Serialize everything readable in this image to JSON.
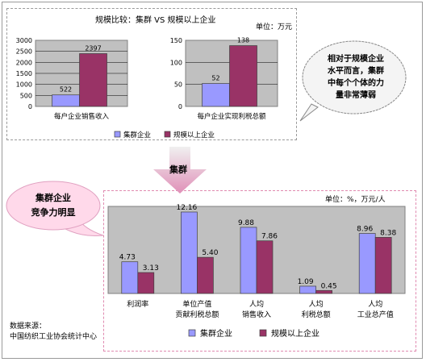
{
  "top_panel": {
    "title": "规模比较：集群 VS 规模以上企业",
    "unit": "单位：万元"
  },
  "bottom_panel": {
    "unit": "单位：%，万元/人"
  },
  "arrow_label": "集群",
  "callout_right": {
    "lines": [
      "相对于规模企业",
      "水平而言，集群",
      "中每个个体的力",
      "量非常薄弱"
    ]
  },
  "callout_left": {
    "lines": [
      "集群企业",
      "竞争力明显"
    ]
  },
  "source": {
    "lines": [
      "数据来源：",
      "中国纺织工业协会统计中心"
    ]
  },
  "colors": {
    "cluster": "#9999ff",
    "above_scale": "#993366",
    "plot_bg": "#c0c0c0",
    "callout_pink": "#ffd9ea"
  },
  "chart_data": [
    {
      "type": "bar",
      "title": "",
      "categories": [
        "每户企业销售收入"
      ],
      "series": [
        {
          "name": "集群企业",
          "values": [
            522
          ]
        },
        {
          "name": "规模以上企业",
          "values": [
            2397
          ]
        }
      ],
      "yticks": [
        "3000",
        "2500",
        "2000",
        "1500",
        "1000",
        "500",
        "0"
      ],
      "ylim": [
        0,
        3000
      ],
      "data_labels": [
        "522",
        "2397"
      ]
    },
    {
      "type": "bar",
      "title": "",
      "categories": [
        "每户企业实现利税总额"
      ],
      "series": [
        {
          "name": "集群企业",
          "values": [
            52
          ]
        },
        {
          "name": "规模以上企业",
          "values": [
            138
          ]
        }
      ],
      "yticks": [
        "150",
        "100",
        "50",
        "0"
      ],
      "ylim": [
        0,
        150
      ],
      "data_labels": [
        "52",
        "138"
      ]
    },
    {
      "type": "bar",
      "categories": [
        "利润率",
        "单位产值|贡献利税总额",
        "人均|销售收入",
        "人均|利税总额",
        "人均|工业总产值"
      ],
      "series": [
        {
          "name": "集群企业",
          "values": [
            4.73,
            12.16,
            9.88,
            1.09,
            8.96
          ]
        },
        {
          "name": "规模以上企业",
          "values": [
            3.13,
            5.4,
            7.86,
            0.45,
            8.38
          ]
        }
      ],
      "data_labels": [
        [
          "4.73",
          "12.16",
          "9.88",
          "1.09",
          "8.96"
        ],
        [
          "3.13",
          "5.40",
          "7.86",
          "0.45",
          "8.38"
        ]
      ],
      "ylim": [
        0,
        13
      ]
    }
  ],
  "legend": {
    "items": [
      "集群企业",
      "规模以上企业"
    ]
  }
}
